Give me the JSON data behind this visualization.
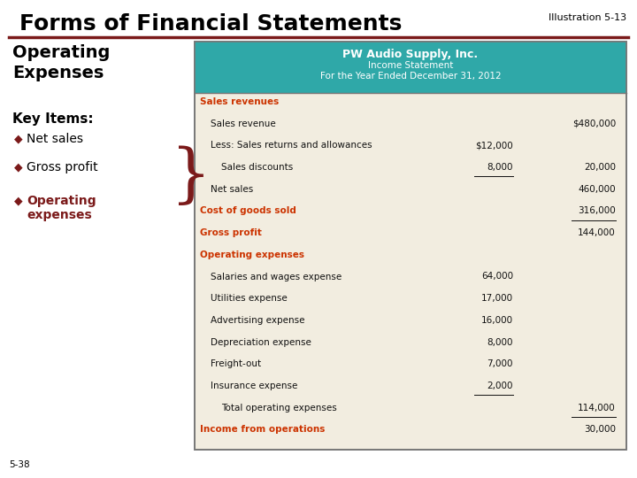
{
  "title": "Forms of Financial Statements",
  "illustration": "Illustration 5-13",
  "slide_number": "5-38",
  "title_color": "#000000",
  "title_fontsize": 18,
  "illus_fontsize": 8,
  "bg_color": "#ffffff",
  "header_line_color": "#7B1A1A",
  "left_panel": {
    "heading": "Operating\nExpenses",
    "heading_color": "#000000",
    "heading_fontsize": 14,
    "subheading": "Key Items:",
    "subheading_fontsize": 11,
    "subheading_color": "#000000",
    "bullet_color": "#7B1A1A",
    "bullets": [
      "Net sales",
      "Gross profit",
      "Operating\nexpenses"
    ],
    "bullets_bold": [
      false,
      false,
      true
    ],
    "bullet_colors": [
      "#000000",
      "#000000",
      "#7B1A1A"
    ],
    "bullet_fontsize": 10
  },
  "table": {
    "header_bg": "#2FA8A8",
    "header_text_color": "#ffffff",
    "header_line1": "PW Audio Supply, Inc.",
    "header_line2": "Income Statement",
    "header_line3": "For the Year Ended December 31, 2012",
    "body_bg": "#F2EDE0",
    "border_color": "#777777",
    "red_color": "#CC3300",
    "rows": [
      {
        "label": "Sales revenues",
        "indent": 0,
        "col1": "",
        "col2": "",
        "style": "red_bold"
      },
      {
        "label": "Sales revenue",
        "indent": 1,
        "col1": "",
        "col2": "$480,000",
        "style": "normal"
      },
      {
        "label": "Less: Sales returns and allowances",
        "indent": 1,
        "col1": "$12,000",
        "col2": "",
        "style": "normal"
      },
      {
        "label": "Sales discounts",
        "indent": 2,
        "col1": "8,000",
        "col2": "20,000",
        "style": "normal",
        "underline_col1": true
      },
      {
        "label": "Net sales",
        "indent": 1,
        "col1": "",
        "col2": "460,000",
        "style": "normal"
      },
      {
        "label": "Cost of goods sold",
        "indent": 0,
        "col1": "",
        "col2": "316,000",
        "style": "red_bold",
        "underline_col2": true
      },
      {
        "label": "Gross profit",
        "indent": 0,
        "col1": "",
        "col2": "144,000",
        "style": "red_bold"
      },
      {
        "label": "Operating expenses",
        "indent": 0,
        "col1": "",
        "col2": "",
        "style": "red_bold"
      },
      {
        "label": "Salaries and wages expense",
        "indent": 1,
        "col1": "64,000",
        "col2": "",
        "style": "normal"
      },
      {
        "label": "Utilities expense",
        "indent": 1,
        "col1": "17,000",
        "col2": "",
        "style": "normal"
      },
      {
        "label": "Advertising expense",
        "indent": 1,
        "col1": "16,000",
        "col2": "",
        "style": "normal"
      },
      {
        "label": "Depreciation expense",
        "indent": 1,
        "col1": "8,000",
        "col2": "",
        "style": "normal"
      },
      {
        "label": "Freight-out",
        "indent": 1,
        "col1": "7,000",
        "col2": "",
        "style": "normal"
      },
      {
        "label": "Insurance expense",
        "indent": 1,
        "col1": "2,000",
        "col2": "",
        "style": "normal",
        "underline_col1": true
      },
      {
        "label": "Total operating expenses",
        "indent": 2,
        "col1": "",
        "col2": "114,000",
        "style": "normal",
        "underline_col2": true
      },
      {
        "label": "Income from operations",
        "indent": 0,
        "col1": "",
        "col2": "30,000",
        "style": "red_bold"
      }
    ]
  }
}
